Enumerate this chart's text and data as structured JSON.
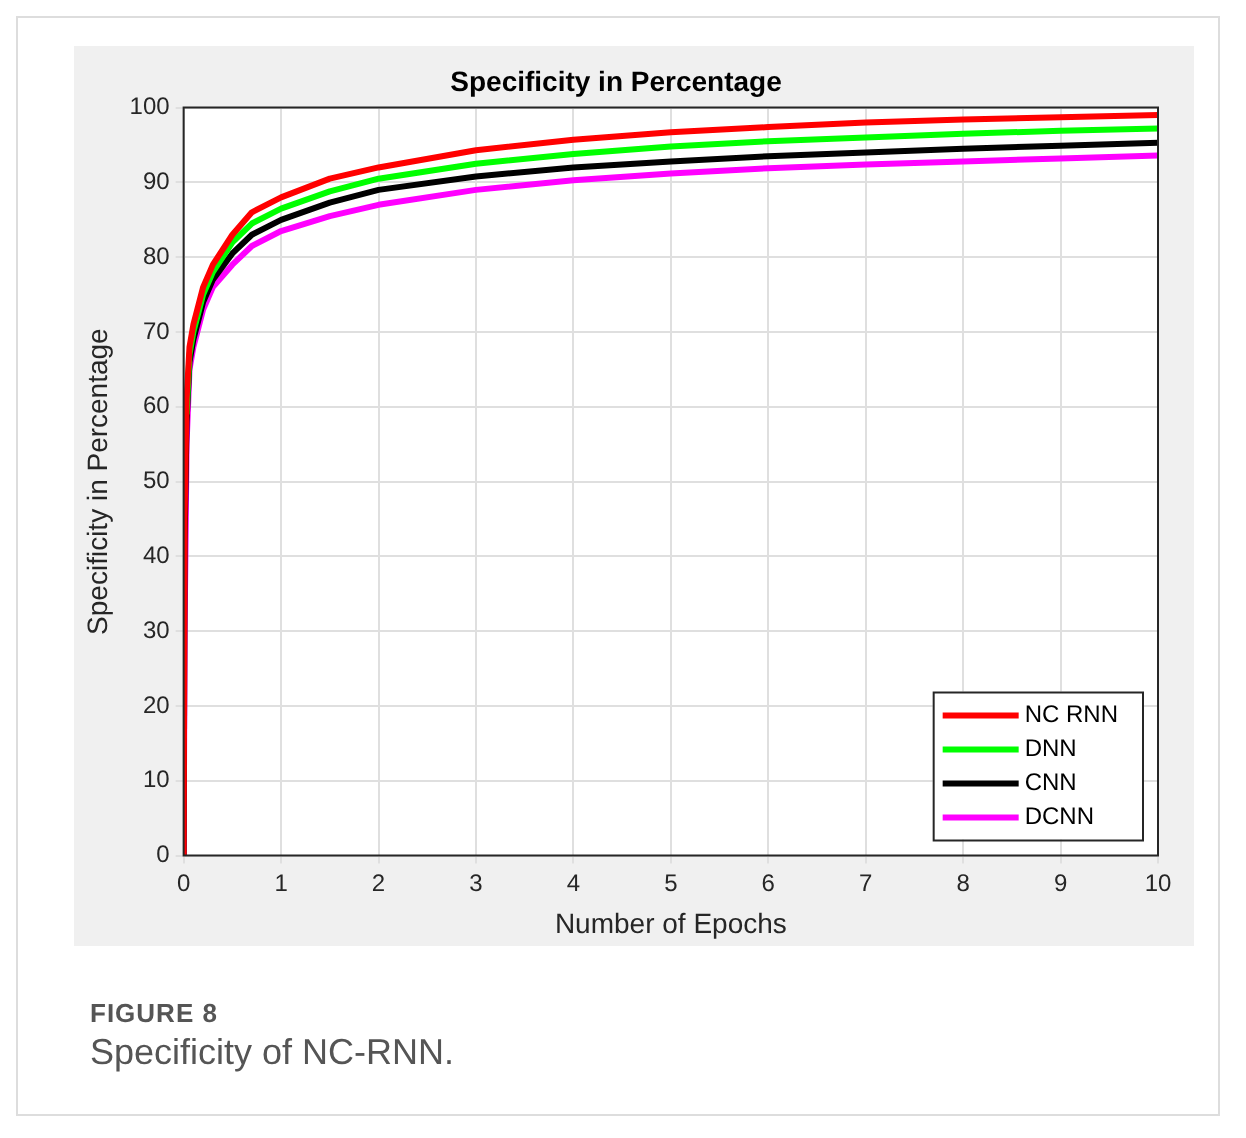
{
  "chart_data": {
    "type": "line",
    "title": "Specificity in Percentage",
    "xlabel": "Number of Epochs",
    "ylabel": "Specificity in Percentage",
    "x": [
      0,
      0.01,
      0.03,
      0.06,
      0.1,
      0.2,
      0.3,
      0.5,
      0.7,
      1,
      1.5,
      2,
      3,
      4,
      5,
      6,
      7,
      8,
      9,
      10
    ],
    "series": [
      {
        "name": "NC RNN",
        "color": "#ff0000",
        "values": [
          0,
          45,
          61,
          68,
          71,
          76,
          79,
          83,
          86,
          88,
          90.5,
          92,
          94.3,
          95.7,
          96.7,
          97.4,
          98,
          98.4,
          98.7,
          99
        ]
      },
      {
        "name": "DNN",
        "color": "#00ff00",
        "values": [
          null,
          null,
          59,
          67,
          70,
          75,
          78,
          82,
          84.5,
          86.5,
          88.8,
          90.5,
          92.5,
          93.8,
          94.8,
          95.5,
          96,
          96.5,
          96.9,
          97.2
        ]
      },
      {
        "name": "CNN",
        "color": "#000000",
        "values": [
          0,
          42,
          58,
          66,
          69,
          74,
          77,
          80.5,
          83,
          85,
          87.3,
          89,
          90.8,
          92,
          92.8,
          93.5,
          94,
          94.5,
          94.9,
          95.3
        ]
      },
      {
        "name": "DCNN",
        "color": "#ff00ff",
        "values": [
          0,
          30,
          55,
          65,
          68,
          73,
          76,
          79,
          81.5,
          83.5,
          85.5,
          87,
          89,
          90.3,
          91.2,
          91.9,
          92.4,
          92.8,
          93.2,
          93.6
        ]
      }
    ],
    "xlim": [
      0,
      10
    ],
    "xticks": [
      0,
      1,
      2,
      3,
      4,
      5,
      6,
      7,
      8,
      9,
      10
    ],
    "ylim": [
      0,
      100
    ],
    "yticks": [
      0,
      10,
      20,
      30,
      40,
      50,
      60,
      70,
      80,
      90,
      100
    ],
    "grid": true,
    "legend": "bottom right",
    "marker": "none",
    "line_style": "solid",
    "annotations": [
      "FIGURE 8",
      "Specificity of NC-RNN."
    ]
  }
}
